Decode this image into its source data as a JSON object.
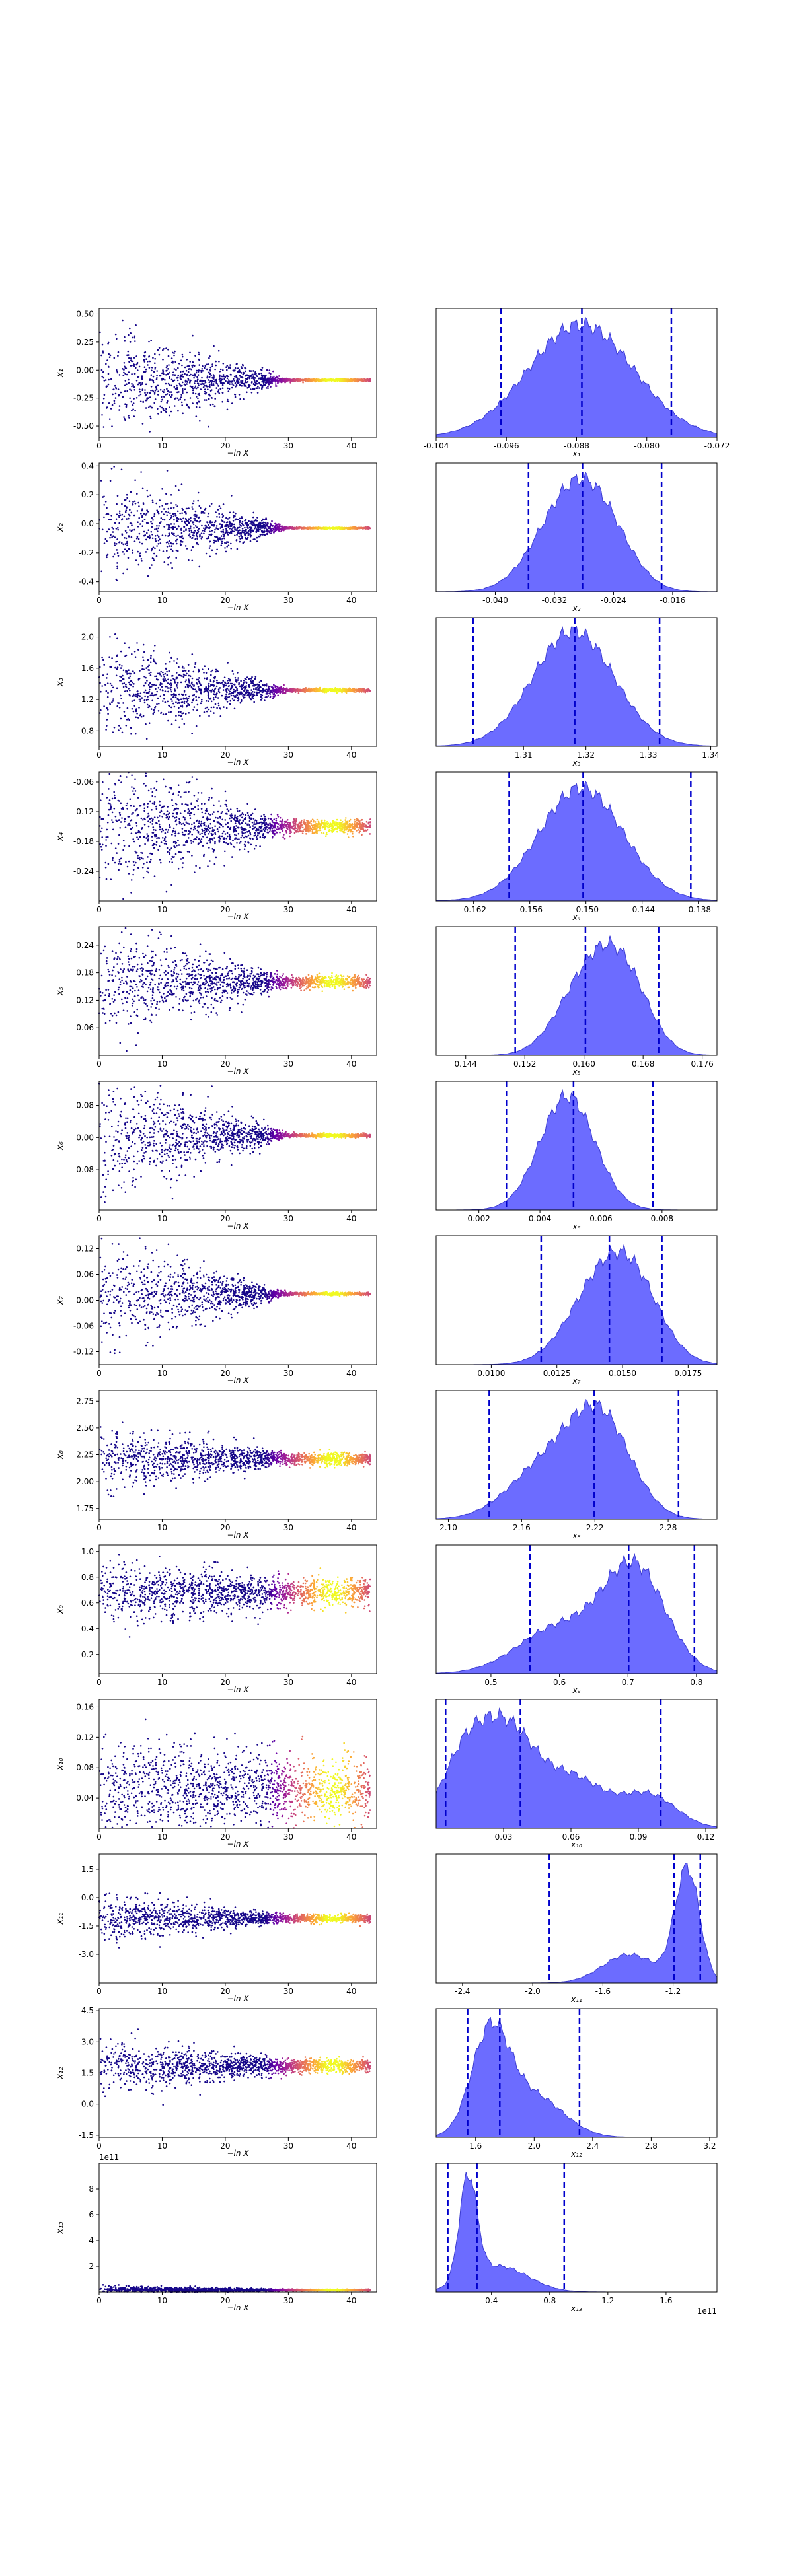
{
  "figure": {
    "background": "#ffffff"
  },
  "style": {
    "scatter_cmap": [
      "#0d0887",
      "#6a00a8",
      "#b12a90",
      "#e16462",
      "#fca636",
      "#f0f921"
    ],
    "kde_fill": "#6464ff",
    "kde_edge": "#3a3ad0",
    "quantile_line": "#0000cc"
  },
  "chart_data": [
    {
      "type": "scatter",
      "param": "x_1",
      "ylabel": "x₁",
      "xlabel": "−ln X",
      "xticks": [
        0,
        10,
        20,
        30,
        40
      ],
      "xlim": [
        0,
        44
      ],
      "yticks": [
        "0.50",
        "0.25",
        "0.00",
        "-0.25",
        "-0.50"
      ],
      "ylim": [
        -0.6,
        0.55
      ],
      "center": -0.09,
      "spread_start": 0.45,
      "spread_end": 0.01
    },
    {
      "type": "area",
      "param": "x_1",
      "xlabel": "x₁",
      "xticks": [
        "-0.104",
        "-0.096",
        "-0.088",
        "-0.080",
        "-0.072"
      ],
      "xlim": [
        -0.104,
        -0.072
      ],
      "quantiles": [
        -0.0966,
        -0.0874,
        -0.0772
      ],
      "density_peaks": [
        [
          -0.0875,
          1.0,
          0.006
        ]
      ]
    },
    {
      "type": "scatter",
      "param": "x_2",
      "ylabel": "x₂",
      "xlabel": "−ln X",
      "xticks": [
        0,
        10,
        20,
        30,
        40
      ],
      "xlim": [
        0,
        44
      ],
      "yticks": [
        "0.4",
        "0.2",
        "0.0",
        "-0.2",
        "-0.4"
      ],
      "ylim": [
        -0.47,
        0.42
      ],
      "center": -0.03,
      "spread_start": 0.35,
      "spread_end": 0.005
    },
    {
      "type": "area",
      "param": "x_2",
      "xlabel": "x₂",
      "xticks": [
        "-0.040",
        "-0.032",
        "-0.024",
        "-0.016"
      ],
      "xlim": [
        -0.048,
        -0.01
      ],
      "quantiles": [
        -0.0355,
        -0.0282,
        -0.0175
      ],
      "density_peaks": [
        [
          -0.0302,
          1.0,
          0.0045
        ],
        [
          -0.0255,
          0.6,
          0.004
        ]
      ]
    },
    {
      "type": "scatter",
      "param": "x_3",
      "ylabel": "x₃",
      "xlabel": "−ln X",
      "xticks": [
        0,
        10,
        20,
        30,
        40
      ],
      "xlim": [
        0,
        44
      ],
      "yticks": [
        "2.0",
        "1.6",
        "1.2",
        "0.8"
      ],
      "ylim": [
        0.6,
        2.25
      ],
      "center": 1.32,
      "spread_start": 0.6,
      "spread_end": 0.02
    },
    {
      "type": "area",
      "param": "x_3",
      "xlabel": "x₃",
      "xticks": [
        "1.31",
        "1.32",
        "1.33",
        "1.34"
      ],
      "xlim": [
        1.296,
        1.341
      ],
      "quantiles": [
        1.3019,
        1.3182,
        1.3318
      ],
      "density_peaks": [
        [
          1.318,
          1.0,
          0.0065
        ]
      ]
    },
    {
      "type": "scatter",
      "param": "x_4",
      "ylabel": "x₄",
      "xlabel": "−ln X",
      "xticks": [
        0,
        10,
        20,
        30,
        40
      ],
      "xlim": [
        0,
        44
      ],
      "yticks": [
        "-0.06",
        "-0.12",
        "-0.18",
        "-0.24"
      ],
      "ylim": [
        -0.3,
        -0.04
      ],
      "center": -0.15,
      "spread_start": 0.12,
      "spread_end": 0.012
    },
    {
      "type": "area",
      "param": "x_4",
      "xlabel": "x₄",
      "xticks": [
        "-0.162",
        "-0.156",
        "-0.150",
        "-0.144",
        "-0.138"
      ],
      "xlim": [
        -0.166,
        -0.136
      ],
      "quantiles": [
        -0.1582,
        -0.1503,
        -0.1388
      ],
      "density_peaks": [
        [
          -0.1505,
          1.0,
          0.0045
        ]
      ]
    },
    {
      "type": "scatter",
      "param": "x_5",
      "ylabel": "x₅",
      "xlabel": "−ln X",
      "xticks": [
        0,
        10,
        20,
        30,
        40
      ],
      "xlim": [
        0,
        44
      ],
      "yticks": [
        "0.24",
        "0.18",
        "0.12",
        "0.06"
      ],
      "ylim": [
        0.0,
        0.28
      ],
      "center": 0.16,
      "spread_start": 0.1,
      "spread_end": 0.012
    },
    {
      "type": "area",
      "param": "x_5",
      "xlabel": "x₅",
      "xticks": [
        "0.144",
        "0.152",
        "0.160",
        "0.168",
        "0.176"
      ],
      "xlim": [
        0.14,
        0.178
      ],
      "quantiles": [
        0.1507,
        0.1602,
        0.1701
      ],
      "density_peaks": [
        [
          0.1605,
          1.0,
          0.004
        ],
        [
          0.1655,
          0.9,
          0.0035
        ]
      ]
    },
    {
      "type": "scatter",
      "param": "x_6",
      "ylabel": "x₆",
      "xlabel": "−ln X",
      "xticks": [
        0,
        10,
        20,
        30,
        40
      ],
      "xlim": [
        0,
        44
      ],
      "yticks": [
        "0.08",
        "0.00",
        "-0.08"
      ],
      "ylim": [
        -0.18,
        0.14
      ],
      "center": 0.005,
      "spread_start": 0.14,
      "spread_end": 0.004
    },
    {
      "type": "area",
      "param": "x_6",
      "xlabel": "x₆",
      "xticks": [
        "0.002",
        "0.004",
        "0.006",
        "0.008"
      ],
      "xlim": [
        0.0006,
        0.0098
      ],
      "quantiles": [
        0.0029,
        0.0051,
        0.0077
      ],
      "density_peaks": [
        [
          0.0049,
          1.0,
          0.0009
        ]
      ]
    },
    {
      "type": "scatter",
      "param": "x_7",
      "ylabel": "x₇",
      "xlabel": "−ln X",
      "xticks": [
        0,
        10,
        20,
        30,
        40
      ],
      "xlim": [
        0,
        44
      ],
      "yticks": [
        "0.12",
        "0.06",
        "0.00",
        "-0.06",
        "-0.12"
      ],
      "ylim": [
        -0.15,
        0.15
      ],
      "center": 0.015,
      "spread_start": 0.12,
      "spread_end": 0.003
    },
    {
      "type": "area",
      "param": "x_7",
      "xlabel": "x₇",
      "xticks": [
        "0.0100",
        "0.0125",
        "0.0150",
        "0.0175"
      ],
      "xlim": [
        0.0079,
        0.0186
      ],
      "quantiles": [
        0.0119,
        0.0145,
        0.0165
      ],
      "density_peaks": [
        [
          0.014,
          0.9,
          0.0012
        ],
        [
          0.0154,
          1.0,
          0.0011
        ]
      ]
    },
    {
      "type": "scatter",
      "param": "x_8",
      "ylabel": "x₈",
      "xlabel": "−ln X",
      "xticks": [
        0,
        10,
        20,
        30,
        40
      ],
      "xlim": [
        0,
        44
      ],
      "yticks": [
        "2.75",
        "2.50",
        "2.25",
        "2.00",
        "1.75"
      ],
      "ylim": [
        1.65,
        2.85
      ],
      "center": 2.21,
      "spread_start": 0.28,
      "spread_end": 0.05
    },
    {
      "type": "area",
      "param": "x_8",
      "xlabel": "x₈",
      "xticks": [
        "2.10",
        "2.16",
        "2.22",
        "2.28"
      ],
      "xlim": [
        2.09,
        2.32
      ],
      "quantiles": [
        2.1335,
        2.2195,
        2.2885
      ],
      "density_peaks": [
        [
          2.225,
          1.0,
          0.025
        ],
        [
          2.18,
          0.55,
          0.03
        ]
      ]
    },
    {
      "type": "scatter",
      "param": "x_9",
      "ylabel": "x₉",
      "xlabel": "−ln X",
      "xticks": [
        0,
        10,
        20,
        30,
        40
      ],
      "xlim": [
        0,
        44
      ],
      "yticks": [
        "1.0",
        "0.8",
        "0.6",
        "0.4",
        "0.2"
      ],
      "ylim": [
        0.05,
        1.05
      ],
      "center": 0.68,
      "spread_start": 0.22,
      "spread_end": 0.1
    },
    {
      "type": "area",
      "param": "x_9",
      "xlabel": "x₉",
      "xticks": [
        "0.5",
        "0.6",
        "0.7",
        "0.8"
      ],
      "xlim": [
        0.42,
        0.83
      ],
      "quantiles": [
        0.557,
        0.701,
        0.797
      ],
      "density_peaks": [
        [
          0.71,
          1.0,
          0.045
        ],
        [
          0.6,
          0.45,
          0.06
        ]
      ]
    },
    {
      "type": "scatter",
      "param": "x_10",
      "ylabel": "x₁₀",
      "xlabel": "−ln X",
      "xticks": [
        0,
        10,
        20,
        30,
        40
      ],
      "xlim": [
        0,
        44
      ],
      "yticks": [
        "0.16",
        "0.12",
        "0.08",
        "0.04"
      ],
      "ylim": [
        0.0,
        0.17
      ],
      "center": 0.05,
      "spread_start": 0.06,
      "spread_end": 0.04
    },
    {
      "type": "area",
      "param": "x_10",
      "xlabel": "x₁₀",
      "xticks": [
        "0.03",
        "0.06",
        "0.09",
        "0.12"
      ],
      "xlim": [
        0.0,
        0.125
      ],
      "quantiles": [
        0.0042,
        0.0375,
        0.1
      ],
      "density_peaks": [
        [
          0.031,
          1.0,
          0.012
        ],
        [
          0.012,
          0.7,
          0.01
        ],
        [
          0.06,
          0.55,
          0.015
        ],
        [
          0.095,
          0.35,
          0.012
        ]
      ]
    },
    {
      "type": "scatter",
      "param": "x_11",
      "ylabel": "x₁₁",
      "xlabel": "−ln X",
      "xticks": [
        0,
        10,
        20,
        30,
        40
      ],
      "xlim": [
        0,
        44
      ],
      "yticks": [
        "1.5",
        "0.0",
        "-1.5",
        "-3.0"
      ],
      "ylim": [
        -4.5,
        2.3
      ],
      "center": -1.1,
      "spread_start": 1.2,
      "spread_end": 0.2
    },
    {
      "type": "area",
      "param": "x_11",
      "xlabel": "x₁₁",
      "xticks": [
        "-2.4",
        "-2.0",
        "-1.6",
        "-1.2"
      ],
      "xlim": [
        -2.55,
        -0.95
      ],
      "quantiles": [
        -1.905,
        -1.195,
        -1.045
      ],
      "density_peaks": [
        [
          -1.12,
          1.0,
          0.07
        ],
        [
          -1.45,
          0.25,
          0.15
        ]
      ]
    },
    {
      "type": "scatter",
      "param": "x_12",
      "ylabel": "x₁₂",
      "xlabel": "−ln X",
      "xticks": [
        0,
        10,
        20,
        30,
        40
      ],
      "xlim": [
        0,
        44
      ],
      "yticks": [
        "4.5",
        "3.0",
        "1.5",
        "0.0",
        "-1.5"
      ],
      "ylim": [
        -1.6,
        4.6
      ],
      "center": 1.85,
      "spread_start": 1.2,
      "spread_end": 0.3
    },
    {
      "type": "area",
      "param": "x_12",
      "xlabel": "x₁₂",
      "xticks": [
        "1.6",
        "2.0",
        "2.4",
        "2.8",
        "3.2"
      ],
      "xlim": [
        1.33,
        3.25
      ],
      "quantiles": [
        1.545,
        1.765,
        2.31
      ],
      "density_peaks": [
        [
          1.7,
          1.0,
          0.13
        ],
        [
          2.0,
          0.4,
          0.2
        ]
      ]
    },
    {
      "type": "scatter",
      "param": "x_13",
      "ylabel": "x₁₃",
      "xlabel": "−ln X",
      "offset_label": "1e11",
      "xticks": [
        0,
        10,
        20,
        30,
        40
      ],
      "xlim": [
        0,
        44
      ],
      "yticks": [
        "8",
        "6",
        "4",
        "2"
      ],
      "ylim": [
        0,
        10
      ],
      "center": 0.15,
      "spread_start": 0.3,
      "spread_end": 0.05
    },
    {
      "type": "area",
      "param": "x_13",
      "xlabel": "x₁₃",
      "offset_label": "1e11",
      "xticks": [
        "0.4",
        "0.8",
        "1.2",
        "1.6"
      ],
      "xlim": [
        0.02,
        1.95
      ],
      "quantiles": [
        0.1,
        0.3,
        0.9
      ],
      "density_peaks": [
        [
          0.24,
          1.0,
          0.06
        ],
        [
          0.45,
          0.25,
          0.2
        ]
      ]
    }
  ]
}
